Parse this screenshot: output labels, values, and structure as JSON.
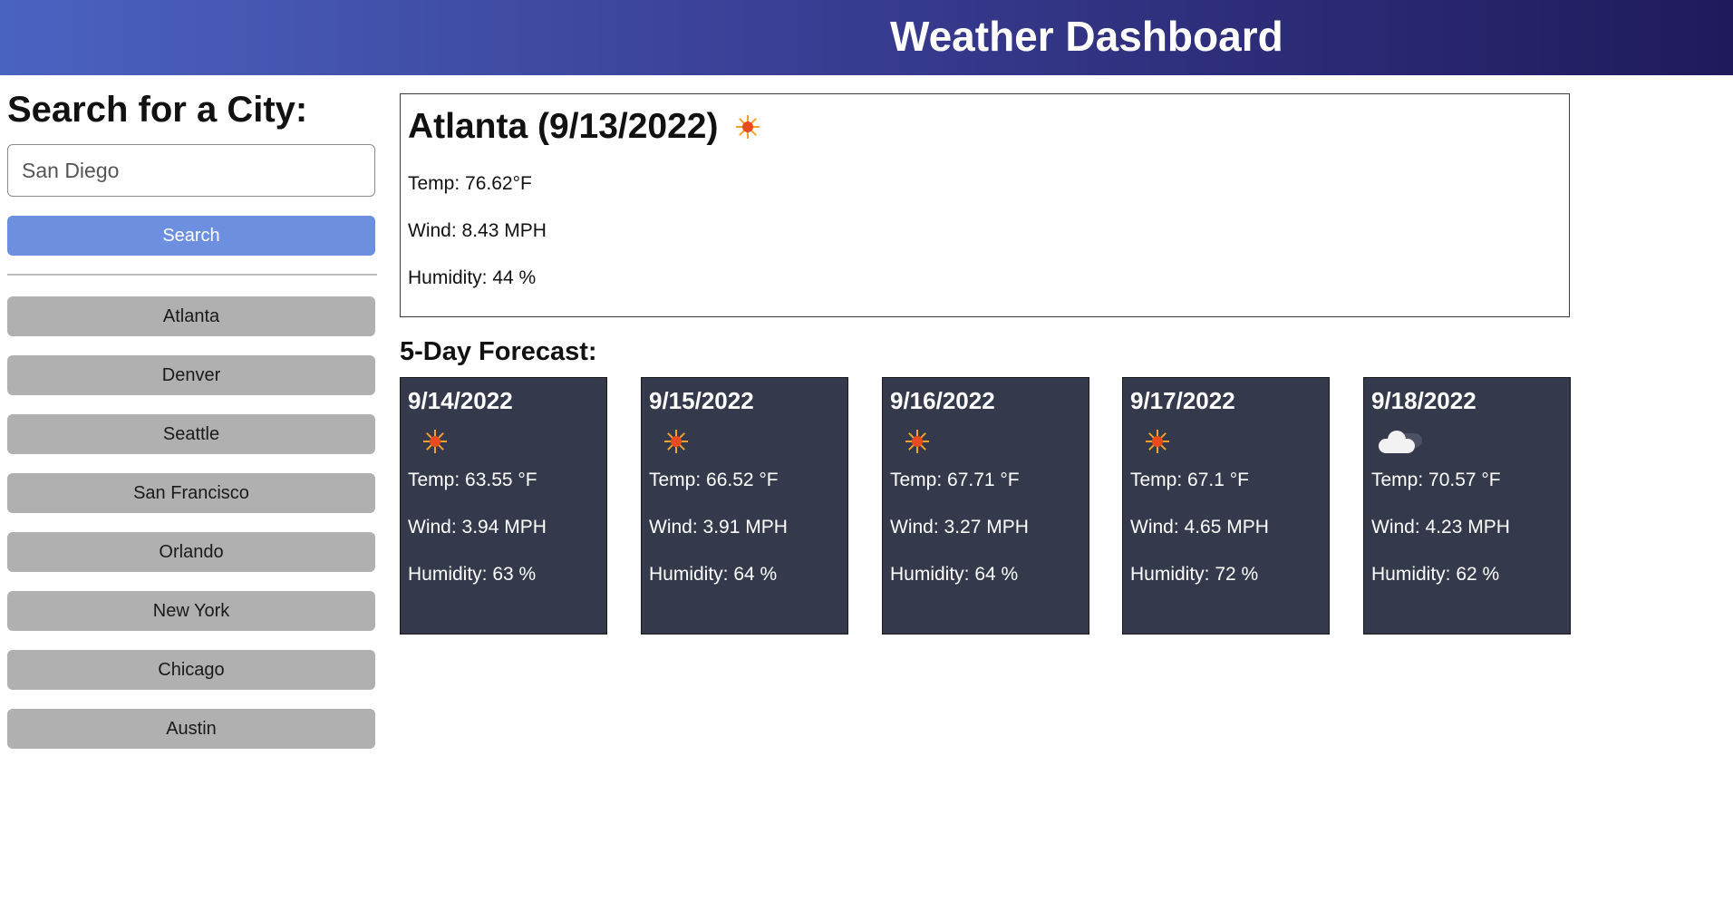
{
  "header": {
    "title": "Weather Dashboard"
  },
  "sidebar": {
    "title": "Search for a City:",
    "search_value": "San Diego",
    "search_button": "Search",
    "history": [
      "Atlanta",
      "Denver",
      "Seattle",
      "San Francisco",
      "Orlando",
      "New York",
      "Chicago",
      "Austin"
    ]
  },
  "current": {
    "title": "Atlanta (9/13/2022)",
    "icon": "sun-icon",
    "temp": "Temp: 76.62°F",
    "wind": "Wind: 8.43 MPH",
    "humidity": "Humidity: 44 %"
  },
  "forecast": {
    "title": "5-Day Forecast:",
    "days": [
      {
        "date": "9/14/2022",
        "icon": "sun-icon",
        "temp": "Temp: 63.55 °F",
        "wind": "Wind: 3.94 MPH",
        "humidity": "Humidity: 63 %"
      },
      {
        "date": "9/15/2022",
        "icon": "sun-icon",
        "temp": "Temp: 66.52 °F",
        "wind": "Wind: 3.91 MPH",
        "humidity": "Humidity: 64 %"
      },
      {
        "date": "9/16/2022",
        "icon": "sun-icon",
        "temp": "Temp: 67.71 °F",
        "wind": "Wind: 3.27 MPH",
        "humidity": "Humidity: 64 %"
      },
      {
        "date": "9/17/2022",
        "icon": "sun-icon",
        "temp": "Temp: 67.1 °F",
        "wind": "Wind: 4.65 MPH",
        "humidity": "Humidity: 72 %"
      },
      {
        "date": "9/18/2022",
        "icon": "cloud-icon",
        "temp": "Temp: 70.57 °F",
        "wind": "Wind: 4.23 MPH",
        "humidity": "Humidity: 62 %"
      }
    ]
  },
  "colors": {
    "header_start": "#4a63c0",
    "header_end": "#1f1a5c",
    "search_button": "#6d8fdf",
    "history_button": "#b0b0b0",
    "forecast_card": "#343a4c"
  }
}
